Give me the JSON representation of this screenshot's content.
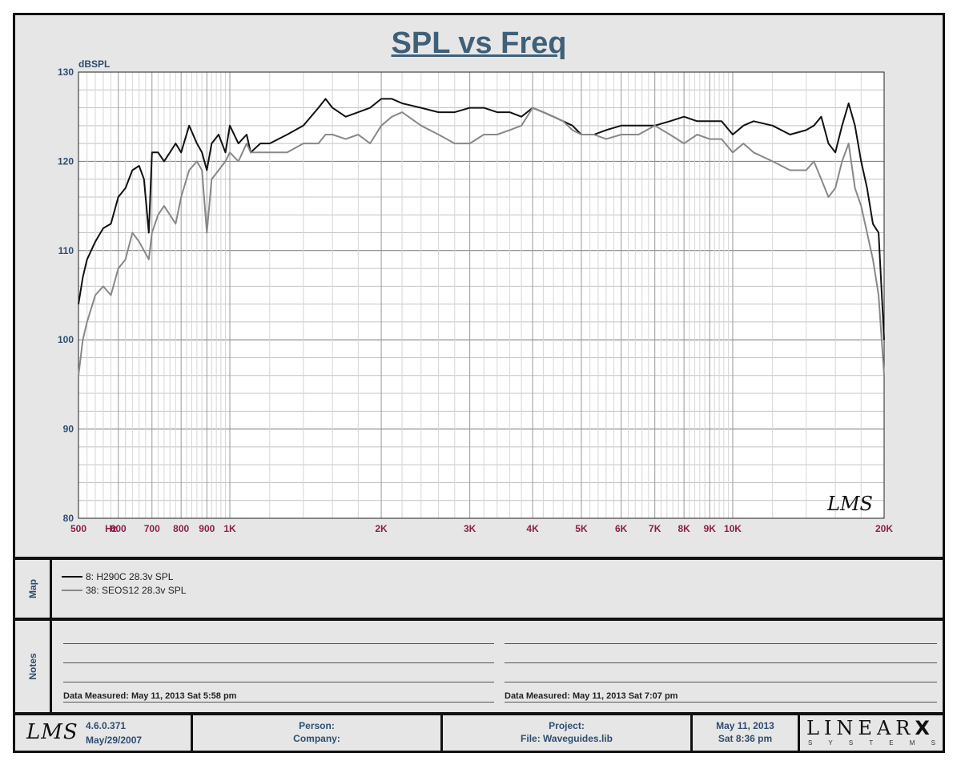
{
  "chart_data": {
    "type": "line",
    "title": "SPL vs Freq",
    "ylabel": "dBSPL",
    "xscale": "log",
    "xlim": [
      500,
      20000
    ],
    "ylim": [
      80,
      130
    ],
    "grid": true,
    "y_ticks": [
      "130",
      "120",
      "110",
      "100",
      "90",
      "80"
    ],
    "x_ticks": [
      {
        "v": 500,
        "label": "500"
      },
      {
        "v": 580,
        "label": "Hz"
      },
      {
        "v": 600,
        "label": "600"
      },
      {
        "v": 700,
        "label": "700"
      },
      {
        "v": 800,
        "label": "800"
      },
      {
        "v": 900,
        "label": "900"
      },
      {
        "v": 1000,
        "label": "1K"
      },
      {
        "v": 2000,
        "label": "2K"
      },
      {
        "v": 3000,
        "label": "3K"
      },
      {
        "v": 4000,
        "label": "4K"
      },
      {
        "v": 5000,
        "label": "5K"
      },
      {
        "v": 6000,
        "label": "6K"
      },
      {
        "v": 7000,
        "label": "7K"
      },
      {
        "v": 8000,
        "label": "8K"
      },
      {
        "v": 9000,
        "label": "9K"
      },
      {
        "v": 10000,
        "label": "10K"
      },
      {
        "v": 20000,
        "label": "20K"
      }
    ],
    "series": [
      {
        "name": "8: H290C 28.3v SPL",
        "color": "#111111",
        "x": [
          500,
          510,
          520,
          540,
          560,
          580,
          600,
          620,
          640,
          660,
          675,
          690,
          700,
          720,
          740,
          760,
          780,
          800,
          830,
          860,
          880,
          900,
          920,
          950,
          980,
          1000,
          1040,
          1080,
          1100,
          1150,
          1200,
          1300,
          1400,
          1500,
          1550,
          1600,
          1700,
          1800,
          1900,
          2000,
          2100,
          2200,
          2400,
          2600,
          2800,
          3000,
          3200,
          3400,
          3600,
          3800,
          4000,
          4200,
          4400,
          4600,
          4800,
          5000,
          5300,
          5600,
          6000,
          6500,
          7000,
          7500,
          8000,
          8500,
          9000,
          9500,
          10000,
          10500,
          11000,
          12000,
          13000,
          14000,
          14500,
          15000,
          15500,
          16000,
          16500,
          17000,
          17500,
          18000,
          18500,
          19000,
          19500,
          20000
        ],
        "y": [
          104,
          107,
          109,
          111,
          112.5,
          113,
          116,
          117,
          119,
          119.5,
          118,
          112,
          121,
          121,
          120,
          121,
          122,
          121,
          124,
          122,
          121,
          119,
          122,
          123,
          121,
          124,
          122,
          123,
          121,
          122,
          122,
          123,
          124,
          126,
          127,
          126,
          125,
          125.5,
          126,
          127,
          127,
          126.5,
          126,
          125.5,
          125.5,
          126,
          126,
          125.5,
          125.5,
          125,
          126,
          125.5,
          125,
          124.5,
          124,
          123,
          123,
          123.5,
          124,
          124,
          124,
          124.5,
          125,
          124.5,
          124.5,
          124.5,
          123,
          124,
          124.5,
          124,
          123,
          123.5,
          124,
          125,
          122,
          121,
          124,
          126.5,
          124,
          120,
          117,
          113,
          112,
          100
        ]
      },
      {
        "name": "38: SEOS12 28.3v SPL",
        "color": "#888888",
        "x": [
          500,
          510,
          520,
          540,
          560,
          580,
          600,
          620,
          640,
          660,
          675,
          690,
          700,
          720,
          740,
          760,
          780,
          800,
          830,
          860,
          880,
          900,
          920,
          950,
          980,
          1000,
          1040,
          1080,
          1100,
          1150,
          1200,
          1300,
          1400,
          1500,
          1550,
          1600,
          1700,
          1800,
          1900,
          2000,
          2100,
          2200,
          2400,
          2600,
          2800,
          3000,
          3200,
          3400,
          3600,
          3800,
          4000,
          4200,
          4400,
          4600,
          4800,
          5000,
          5300,
          5600,
          6000,
          6500,
          7000,
          7500,
          8000,
          8500,
          9000,
          9500,
          10000,
          10500,
          11000,
          12000,
          13000,
          14000,
          14500,
          15000,
          15500,
          16000,
          16500,
          17000,
          17500,
          18000,
          18500,
          19000,
          19500,
          20000
        ],
        "y": [
          96,
          100,
          102,
          105,
          106,
          105,
          108,
          109,
          112,
          111,
          110,
          109,
          112,
          114,
          115,
          114,
          113,
          116,
          119,
          120,
          119,
          112,
          118,
          119,
          120,
          121,
          120,
          122,
          121,
          121,
          121,
          121,
          122,
          122,
          123,
          123,
          122.5,
          123,
          122,
          124,
          125,
          125.5,
          124,
          123,
          122,
          122,
          123,
          123,
          123.5,
          124,
          126,
          125.5,
          125,
          124.5,
          123.5,
          123,
          123,
          122.5,
          123,
          123,
          124,
          123,
          122,
          123,
          122.5,
          122.5,
          121,
          122,
          121,
          120,
          119,
          119,
          120,
          118,
          116,
          117,
          120,
          122,
          117,
          115,
          112,
          109,
          105,
          96
        ]
      }
    ]
  },
  "legend_header": "Map",
  "notes_header": "Notes",
  "measured_left": "Data Measured: May 11, 2013  Sat  5:58 pm",
  "measured_right": "Data Measured: May 11, 2013  Sat  7:07 pm",
  "watermark": "LMS",
  "footer": {
    "logo": "LMS",
    "version": "4.6.0.371",
    "version_date": "May/29/2007",
    "person_label": "Person:",
    "company_label": "Company:",
    "project_label": "Project:",
    "file_label": "File: Waveguides.lib",
    "date": "May 11, 2013",
    "time": "Sat  8:36 pm",
    "brand": "LINEAR",
    "brand_x": "X",
    "brand_sub": "S Y S T E M S"
  }
}
